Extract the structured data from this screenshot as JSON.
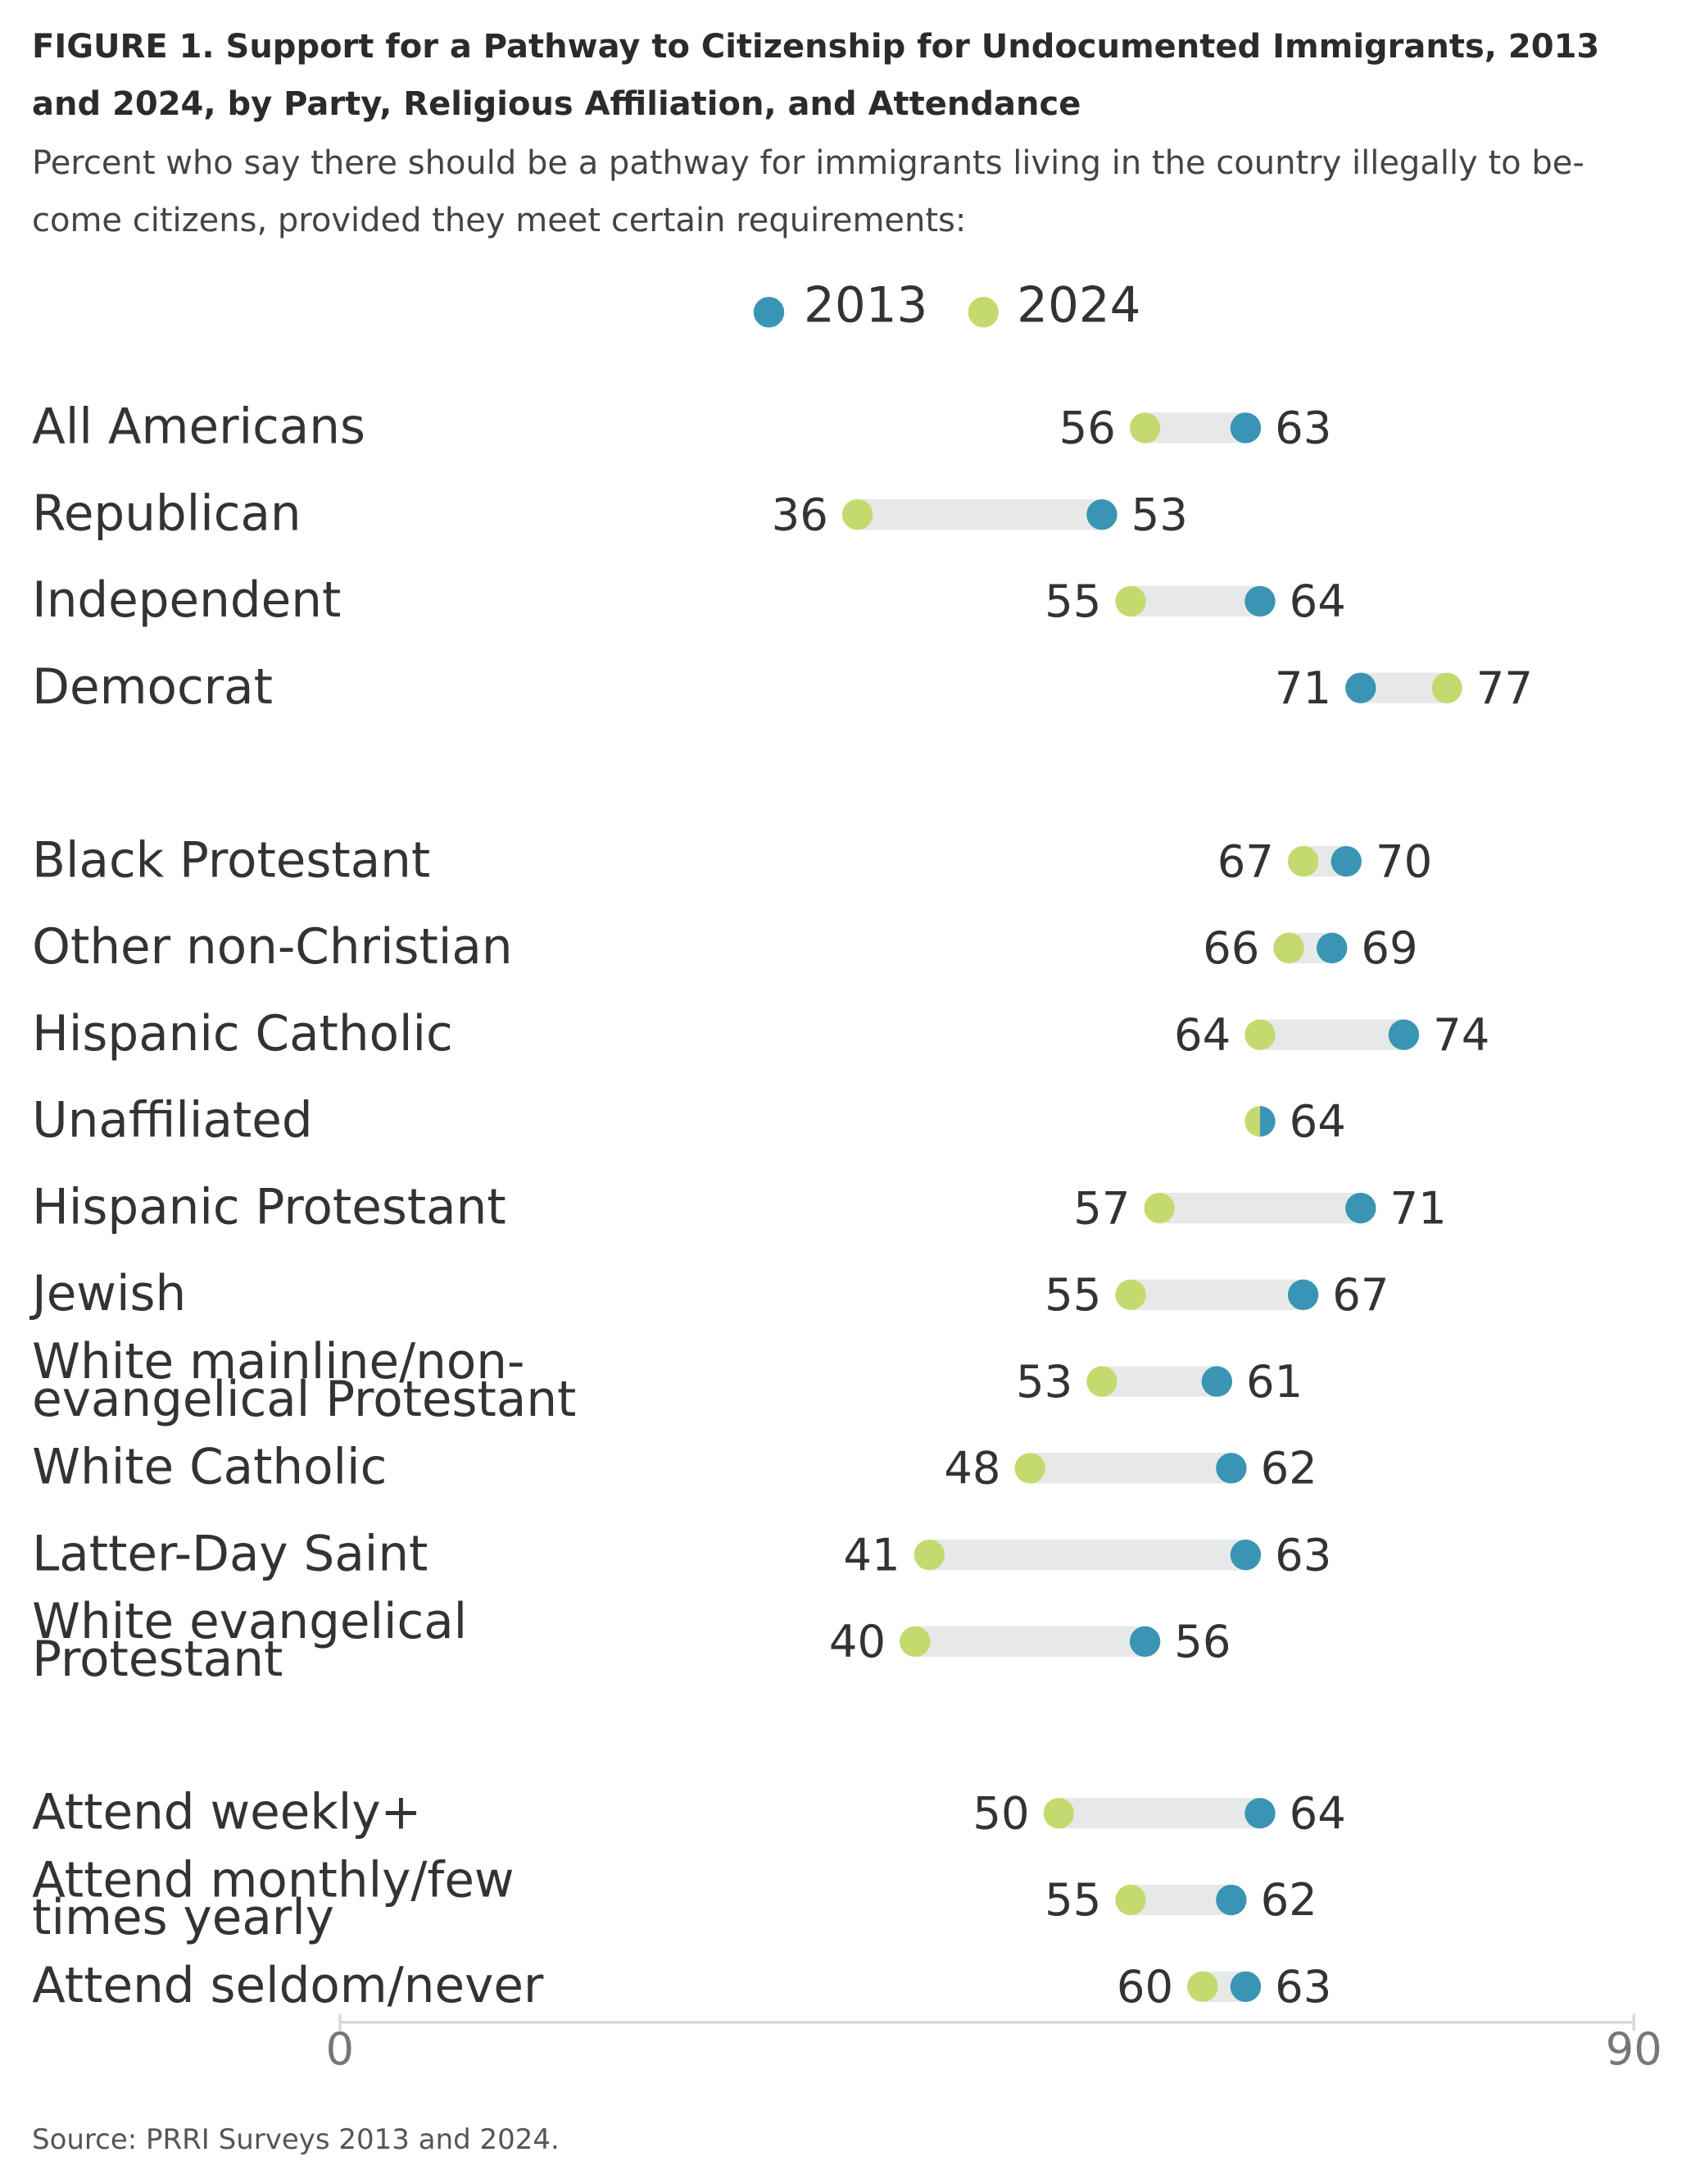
{
  "title": "FIGURE 1.  Support for a Pathway to Citizenship for Undocumented Immigrants, 2013 and 2024, by Party, Religious Affiliation, and Attendance",
  "subtitle": "Percent who say there should be a pathway for immigrants living in the country illegally to be-come citizens, provided they meet certain requirements:",
  "source": "Source: PRRI Surveys 2013 and 2024.",
  "colors": {
    "2013": "#3a95b4",
    "2024": "#c5da6e",
    "range_bar": "#e7e9e8",
    "axis": "#d8d8d8"
  },
  "chart_data": {
    "type": "dumbbell",
    "xlim": [
      0,
      90
    ],
    "x_ticks": [
      0,
      90
    ],
    "legend": {
      "placement": "top-center",
      "entries": [
        "2013",
        "2024"
      ]
    },
    "series": [
      {
        "name": "2013",
        "color": "#3a95b4"
      },
      {
        "name": "2024",
        "color": "#c5da6e"
      }
    ],
    "groups": [
      {
        "rows": [
          {
            "label": [
              "All Americans"
            ],
            "v2013": 63,
            "v2024": 56
          },
          {
            "label": [
              "Republican"
            ],
            "v2013": 53,
            "v2024": 36
          },
          {
            "label": [
              "Independent"
            ],
            "v2013": 64,
            "v2024": 55
          },
          {
            "label": [
              "Democrat"
            ],
            "v2013": 71,
            "v2024": 77
          }
        ]
      },
      {
        "rows": [
          {
            "label": [
              "Black Protestant"
            ],
            "v2013": 70,
            "v2024": 67
          },
          {
            "label": [
              "Other non-Christian"
            ],
            "v2013": 69,
            "v2024": 66
          },
          {
            "label": [
              "Hispanic Catholic"
            ],
            "v2013": 74,
            "v2024": 64
          },
          {
            "label": [
              "Unaffiliated"
            ],
            "v2013": 64,
            "v2024": 64
          },
          {
            "label": [
              "Hispanic Protestant"
            ],
            "v2013": 71,
            "v2024": 57
          },
          {
            "label": [
              "Jewish"
            ],
            "v2013": 67,
            "v2024": 55
          },
          {
            "label": [
              "White mainline/non-",
              "evangelical Protestant"
            ],
            "v2013": 61,
            "v2024": 53
          },
          {
            "label": [
              "White Catholic"
            ],
            "v2013": 62,
            "v2024": 48
          },
          {
            "label": [
              "Latter-Day Saint"
            ],
            "v2013": 63,
            "v2024": 41
          },
          {
            "label": [
              "White evangelical",
              "Protestant"
            ],
            "v2013": 56,
            "v2024": 40
          }
        ]
      },
      {
        "rows": [
          {
            "label": [
              "Attend weekly+"
            ],
            "v2013": 64,
            "v2024": 50
          },
          {
            "label": [
              "Attend monthly/few",
              "times yearly"
            ],
            "v2013": 62,
            "v2024": 55
          },
          {
            "label": [
              "Attend seldom/never"
            ],
            "v2013": 63,
            "v2024": 60
          }
        ]
      }
    ]
  }
}
